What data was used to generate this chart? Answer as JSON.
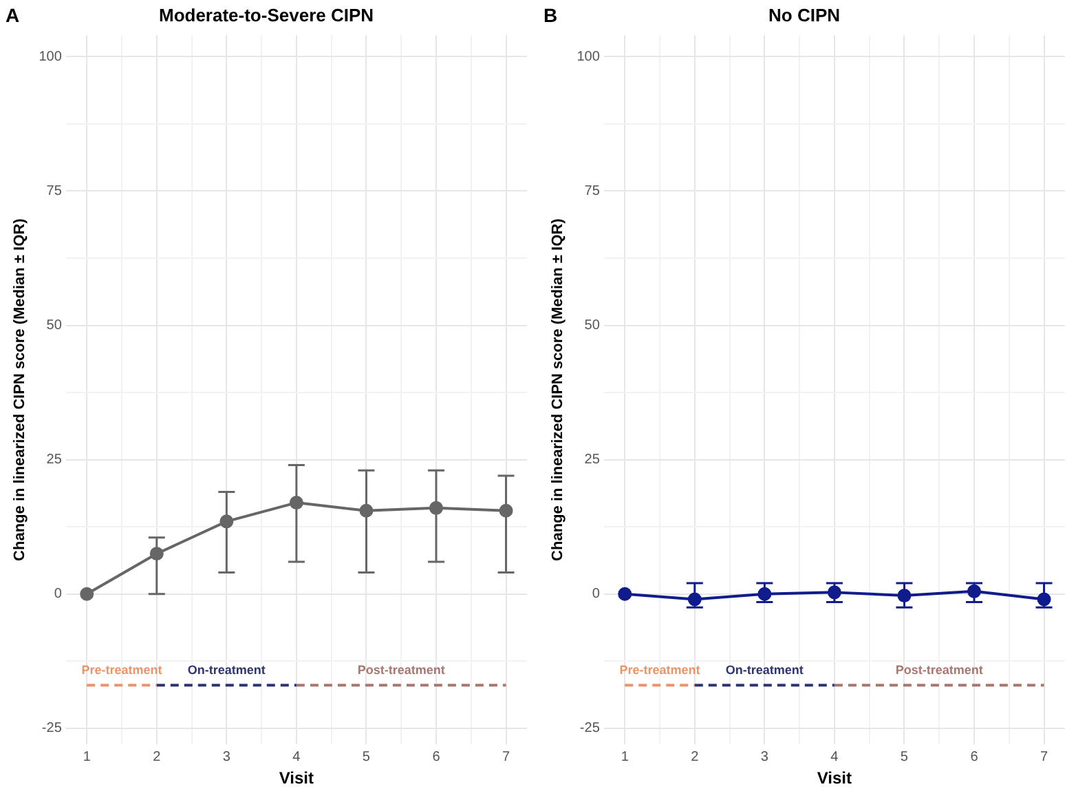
{
  "chart_data": [
    {
      "type": "line",
      "title": "Moderate-to-Severe CIPN",
      "annotations": [
        "A"
      ],
      "xlabel": "Visit",
      "ylabel": "Change in linearized CIPN score (Median ± IQR)",
      "xlim": [
        0.7,
        7.3
      ],
      "xticks": [
        1,
        {
          "value": 1.5,
          "label": null
        },
        2,
        {
          "value": 2.5,
          "label": null
        },
        3,
        {
          "value": 3.5,
          "label": null
        },
        4,
        {
          "value": 4.5,
          "label": null
        },
        5,
        {
          "value": 5.5,
          "label": null
        },
        6,
        {
          "value": 6.5,
          "label": null
        },
        7
      ],
      "ylim": [
        -28,
        104
      ],
      "yticks": [
        -25,
        {
          "value": -12.5,
          "label": null
        },
        0,
        {
          "value": 12.5,
          "label": null
        },
        25,
        {
          "value": 37.5,
          "label": null
        },
        50,
        {
          "value": 62.5,
          "label": null
        },
        75,
        {
          "value": 87.5,
          "label": null
        },
        100
      ],
      "grid": true,
      "legend": false,
      "series": [
        {
          "color": "#666666",
          "marker": "circle",
          "line_style": "solid",
          "x": [
            1,
            2,
            3,
            4,
            5,
            6,
            7
          ],
          "values": [
            0,
            7.5,
            13.5,
            17,
            15.5,
            16,
            15.5
          ],
          "errors": [
            null,
            [
              0,
              10.5
            ],
            [
              4,
              19
            ],
            [
              6,
              24
            ],
            [
              4,
              23
            ],
            [
              6,
              23
            ],
            [
              4,
              22
            ]
          ]
        },
        {
          "name": "Pre-treatment",
          "color": "#e8956b",
          "marker": "none",
          "line_style": "dashed",
          "x": [
            1,
            2
          ],
          "values": [
            -17,
            -17
          ]
        },
        {
          "name": "On-treatment",
          "color": "#2e3470",
          "marker": "none",
          "line_style": "dashed",
          "x": [
            2,
            4
          ],
          "values": [
            -17,
            -17
          ]
        },
        {
          "name": "Post-treatment",
          "color": "#a87870",
          "marker": "none",
          "line_style": "dashed",
          "x": [
            4,
            7
          ],
          "values": [
            -17,
            -17
          ]
        }
      ]
    },
    {
      "type": "line",
      "title": "No CIPN",
      "annotations": [
        "B"
      ],
      "xlabel": "Visit",
      "ylabel": "Change in linearized CIPN score (Median ± IQR)",
      "xlim": [
        0.7,
        7.3
      ],
      "xticks": [
        1,
        {
          "value": 1.5,
          "label": null
        },
        2,
        {
          "value": 2.5,
          "label": null
        },
        3,
        {
          "value": 3.5,
          "label": null
        },
        4,
        {
          "value": 4.5,
          "label": null
        },
        5,
        {
          "value": 5.5,
          "label": null
        },
        6,
        {
          "value": 6.5,
          "label": null
        },
        7
      ],
      "ylim": [
        -28,
        104
      ],
      "yticks": [
        -25,
        {
          "value": -12.5,
          "label": null
        },
        0,
        {
          "value": 12.5,
          "label": null
        },
        25,
        {
          "value": 37.5,
          "label": null
        },
        50,
        {
          "value": 62.5,
          "label": null
        },
        75,
        {
          "value": 87.5,
          "label": null
        },
        100
      ],
      "grid": true,
      "legend": false,
      "series": [
        {
          "color": "#101c8c",
          "marker": "circle",
          "line_style": "solid",
          "x": [
            1,
            2,
            3,
            4,
            5,
            6,
            7
          ],
          "values": [
            0,
            -1,
            0,
            0.3,
            -0.3,
            0.5,
            -1
          ],
          "errors": [
            null,
            [
              -2.5,
              2
            ],
            [
              -1.5,
              2
            ],
            [
              -1.5,
              2
            ],
            [
              -2.5,
              2
            ],
            [
              -1.5,
              2
            ],
            [
              -2.5,
              2
            ]
          ]
        },
        {
          "name": "Pre-treatment",
          "color": "#e8956b",
          "marker": "none",
          "line_style": "dashed",
          "x": [
            1,
            2
          ],
          "values": [
            -17,
            -17
          ]
        },
        {
          "name": "On-treatment",
          "color": "#2e3470",
          "marker": "none",
          "line_style": "dashed",
          "x": [
            2,
            4
          ],
          "values": [
            -17,
            -17
          ]
        },
        {
          "name": "Post-treatment",
          "color": "#a87870",
          "marker": "none",
          "line_style": "dashed",
          "x": [
            4,
            7
          ],
          "values": [
            -17,
            -17
          ]
        }
      ]
    }
  ]
}
